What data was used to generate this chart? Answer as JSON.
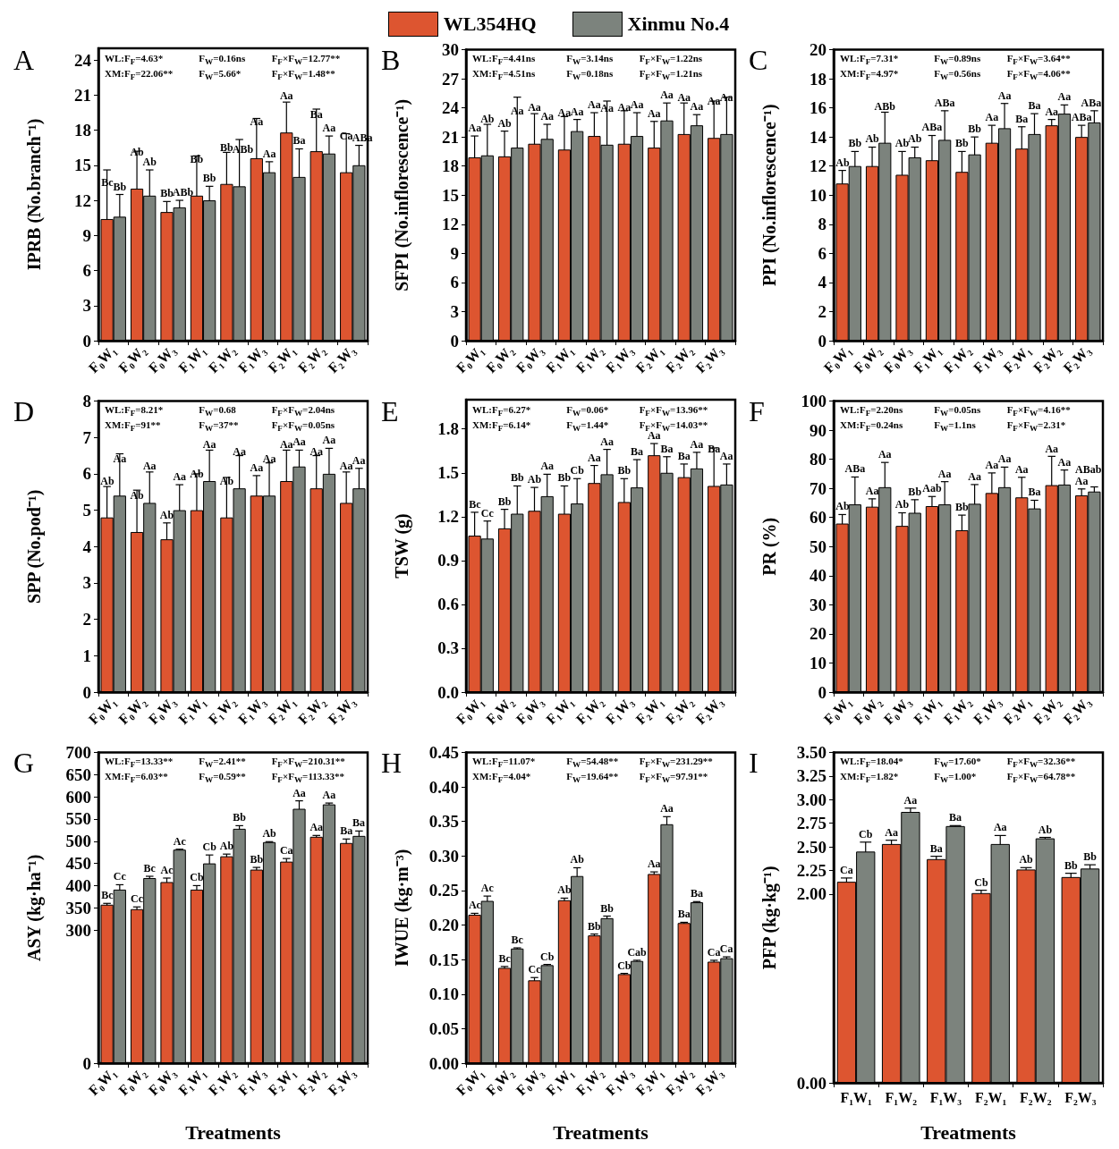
{
  "chart_data": [
    {
      "type": "bar",
      "title": "A",
      "ylabel": "IPRB (No.branch⁻¹)",
      "legend": "top",
      "grid": false,
      "ylim": [
        0,
        25
      ],
      "yticks": [
        0,
        3,
        6,
        9,
        12,
        15,
        18,
        21,
        24
      ],
      "categories": [
        "F₀W₁",
        "F₀W₂",
        "F₀W₃",
        "F₁W₁",
        "F₁W₂",
        "F₁W₃",
        "F₂W₁",
        "F₂W₂",
        "F₂W₃"
      ],
      "annotations": [
        "WL:F$_{F}$=4.63*",
        "F$_{W}$=0.16ns",
        "F$_{F}$×F$_{W}$=12.77**",
        "XM:F$_{F}$=22.06**",
        "F$_{W}$=5.66*",
        "F$_{F}$×F$_{W}$=1.48**"
      ],
      "series": [
        {
          "name": "WL354HQ",
          "color": "#dd5530",
          "values": [
            10.4,
            13.0,
            11.0,
            12.4,
            13.4,
            15.6,
            17.8,
            16.2,
            14.4
          ],
          "errors": [
            4.2,
            3.2,
            0.9,
            3.4,
            2.7,
            3.4,
            2.6,
            3.6,
            3.3
          ],
          "value_labels": [
            "Bc",
            "Ab",
            "Bb",
            "Bb",
            "Bb",
            "Aa",
            "Aa",
            "Ba",
            "Ca"
          ]
        },
        {
          "name": "Xinmu No.4",
          "color": "#7c837d",
          "values": [
            10.6,
            12.4,
            11.4,
            12.0,
            13.2,
            14.4,
            14.0,
            16.0,
            15.0
          ],
          "errors": [
            1.9,
            2.2,
            0.6,
            1.2,
            4.0,
            0.9,
            2.4,
            1.5,
            1.7
          ],
          "value_labels": [
            "Bb",
            "Ab",
            "ABb",
            "Bb",
            "ABb",
            "Aa",
            "Ba",
            "Aa",
            "ABa"
          ]
        }
      ]
    },
    {
      "type": "bar",
      "title": "B",
      "ylabel": "SFPI (No.inflorescence⁻¹)",
      "grid": false,
      "ylim": [
        0,
        30
      ],
      "yticks": [
        0,
        3,
        6,
        9,
        12,
        15,
        18,
        21,
        24,
        27,
        30
      ],
      "categories": [
        "F₀W₁",
        "F₀W₂",
        "F₀W₃",
        "F₁W₁",
        "F₁W₂",
        "F₁W₃",
        "F₂W₁",
        "F₂W₂",
        "F₂W₃"
      ],
      "annotations": [
        "WL:F$_{F}$=4.41ns",
        "F$_{W}$=3.14ns",
        "F$_{F}$×F$_{W}$=1.22ns",
        "XM:F$_{F}$=4.51ns",
        "F$_{W}$=0.18ns",
        "F$_{F}$×F$_{W}$=1.21ns"
      ],
      "series": [
        {
          "color": "#dd5530",
          "values": [
            18.9,
            19.0,
            20.3,
            19.7,
            21.1,
            20.3,
            19.9,
            21.3,
            20.9
          ],
          "errors": [
            2.2,
            2.6,
            3.1,
            3.4,
            2.4,
            3.4,
            2.7,
            3.2,
            3.8
          ],
          "value_labels": [
            "Aa",
            "Ab",
            "Aa",
            "Aa",
            "Aa",
            "Aa",
            "Aa",
            "Aa",
            "Aa"
          ]
        },
        {
          "color": "#7c837d",
          "values": [
            19.1,
            19.9,
            20.8,
            21.6,
            20.2,
            21.1,
            22.7,
            22.2,
            21.3
          ],
          "errors": [
            3.2,
            5.2,
            1.5,
            1.2,
            4.5,
            2.4,
            1.8,
            1.1,
            3.8
          ],
          "value_labels": [
            "Ab",
            "Aa",
            "Aa",
            "Aa",
            "Aa",
            "Aa",
            "Aa",
            "Aa",
            "Aa"
          ]
        }
      ]
    },
    {
      "type": "bar",
      "title": "C",
      "ylabel": "PPI (No.inflorescence⁻¹)",
      "grid": false,
      "ylim": [
        0,
        20
      ],
      "yticks": [
        0,
        2,
        4,
        6,
        8,
        10,
        12,
        14,
        16,
        18,
        20
      ],
      "categories": [
        "F₀W₁",
        "F₀W₂",
        "F₀W₃",
        "F₁W₁",
        "F₁W₂",
        "F₁W₃",
        "F₂W₁",
        "F₂W₂",
        "F₂W₃"
      ],
      "annotations": [
        "WL:F$_{F}$=7.31*",
        "F$_{W}$=0.89ns",
        "F$_{F}$×F$_{W}$=3.64**",
        "XM:F$_{F}$=4.97*",
        "F$_{W}$=0.56ns",
        "F$_{F}$×F$_{W}$=4.06**"
      ],
      "series": [
        {
          "color": "#dd5530",
          "values": [
            10.8,
            12.0,
            11.4,
            12.4,
            11.6,
            13.6,
            13.2,
            14.8,
            14.0
          ],
          "errors": [
            0.9,
            1.3,
            1.6,
            1.7,
            1.4,
            1.2,
            1.5,
            0.4,
            0.8
          ],
          "value_labels": [
            "Ab",
            "Ab",
            "Ab",
            "ABa",
            "Bb",
            "Aa",
            "Ba",
            "Aa",
            "ABa"
          ]
        },
        {
          "color": "#7c837d",
          "values": [
            12.0,
            13.6,
            12.6,
            13.8,
            12.8,
            14.6,
            14.2,
            15.6,
            15.0
          ],
          "errors": [
            1.0,
            2.1,
            0.7,
            2.0,
            1.2,
            1.7,
            1.4,
            0.6,
            0.8
          ],
          "value_labels": [
            "Bb",
            "ABb",
            "Ab",
            "ABa",
            "Bb",
            "Aa",
            "Ba",
            "Aa",
            "ABa"
          ]
        }
      ]
    },
    {
      "type": "bar",
      "title": "D",
      "ylabel": "SPP (No.pod⁻¹)",
      "grid": false,
      "ylim": [
        0,
        8
      ],
      "yticks": [
        0,
        1,
        2,
        3,
        4,
        5,
        6,
        7,
        8
      ],
      "categories": [
        "F₀W₁",
        "F₀W₂",
        "F₀W₃",
        "F₁W₁",
        "F₁W₂",
        "F₁W₃",
        "F₂W₁",
        "F₂W₂",
        "F₂W₃"
      ],
      "annotations": [
        "WL:F$_{F}$=8.21*",
        "F$_{W}$=0.68",
        "F$_{F}$×F$_{W}$=2.04ns",
        "XM:F$_{F}$=91**",
        "F$_{W}$=37**",
        "F$_{F}$×F$_{W}$=0.05ns"
      ],
      "series": [
        {
          "color": "#dd5530",
          "values": [
            4.8,
            4.4,
            4.2,
            5.0,
            4.8,
            5.4,
            5.8,
            5.6,
            5.2
          ],
          "errors": [
            0.85,
            1.15,
            0.45,
            1.0,
            1.1,
            0.55,
            0.85,
            0.9,
            0.85
          ],
          "value_labels": [
            "Ab",
            "Ab",
            "Ab",
            "Ab",
            "Ab",
            "Aa",
            "Aa",
            "Aa",
            "Aa"
          ]
        },
        {
          "color": "#7c837d",
          "values": [
            5.4,
            5.2,
            5.0,
            5.8,
            5.6,
            5.4,
            6.2,
            6.0,
            5.6
          ],
          "errors": [
            1.15,
            0.85,
            0.7,
            0.85,
            0.9,
            0.9,
            0.45,
            0.7,
            0.55
          ],
          "value_labels": [
            "Aa",
            "Aa",
            "Aa",
            "Aa",
            "Aa",
            "Aa",
            "Aa",
            "Aa",
            "Aa"
          ]
        }
      ]
    },
    {
      "type": "bar",
      "title": "E",
      "ylabel": "TSW (g)",
      "grid": false,
      "ylim": [
        0,
        2.0
      ],
      "yticks": [
        {
          "value": 0,
          "label": "0.0"
        },
        0.3,
        0.6,
        0.9,
        1.2,
        1.5,
        1.8
      ],
      "categories": [
        "F₀W₁",
        "F₀W₂",
        "F₀W₃",
        "F₁W₁",
        "F₁W₂",
        "F₁W₃",
        "F₂W₁",
        "F₂W₂",
        "F₂W₃"
      ],
      "annotations": [
        "WL:F$_{F}$=6.27*",
        "F$_{W}$=0.06*",
        "F$_{F}$×F$_{W}$=13.96**",
        "XM:F$_{F}$=6.14*",
        "F$_{W}$=1.44*",
        "F$_{F}$×F$_{W}$=14.03**"
      ],
      "series": [
        {
          "color": "#dd5530",
          "values": [
            1.07,
            1.12,
            1.24,
            1.22,
            1.43,
            1.3,
            1.62,
            1.47,
            1.41
          ],
          "errors": [
            0.16,
            0.13,
            0.16,
            0.19,
            0.12,
            0.16,
            0.08,
            0.09,
            0.26
          ],
          "value_labels": [
            "Bc",
            "Bb",
            "Ab",
            "Bb",
            "Aa",
            "Bb",
            "Aa",
            "Ba",
            "Ba"
          ]
        },
        {
          "color": "#7c837d",
          "values": [
            1.05,
            1.22,
            1.34,
            1.29,
            1.49,
            1.4,
            1.5,
            1.53,
            1.42
          ],
          "errors": [
            0.12,
            0.19,
            0.15,
            0.17,
            0.17,
            0.19,
            0.11,
            0.11,
            0.14
          ],
          "value_labels": [
            "Cc",
            "Bb",
            "Aa",
            "Cb",
            "Aa",
            "Ba",
            "Ba",
            "Aa",
            "Aa"
          ]
        }
      ]
    },
    {
      "type": "bar",
      "title": "F",
      "ylabel": "PR (%)",
      "grid": false,
      "ylim": [
        0,
        100
      ],
      "yticks": [
        0,
        10,
        20,
        30,
        40,
        50,
        60,
        70,
        80,
        90,
        100
      ],
      "categories": [
        "F₀W₁",
        "F₀W₂",
        "F₀W₃",
        "F₁W₁",
        "F₁W₂",
        "F₁W₃",
        "F₂W₁",
        "F₂W₂",
        "F₂W₃"
      ],
      "annotations": [
        "WL:F$_{F}$=2.20ns",
        "F$_{W}$=0.05ns",
        "F$_{F}$×F$_{W}$=4.16**",
        "XM:F$_{F}$=0.24ns",
        "F$_{W}$=1.1ns",
        "F$_{F}$×F$_{W}$=2.31*"
      ],
      "series": [
        {
          "color": "#dd5530",
          "values": [
            57.9,
            63.7,
            57.1,
            63.9,
            55.6,
            68.4,
            66.9,
            71.1,
            67.6
          ],
          "errors": [
            3.1,
            2.7,
            4.5,
            3.3,
            5.2,
            6.9,
            6.9,
            9.9,
            2.2
          ],
          "value_labels": [
            "Ab",
            "Aa",
            "Ab",
            "Aab",
            "Bb",
            "Aa",
            "Aa",
            "Aa",
            "Aa"
          ]
        },
        {
          "color": "#7c837d",
          "values": [
            64.5,
            70.4,
            61.6,
            64.5,
            64.7,
            70.4,
            63.1,
            71.3,
            68.9
          ],
          "errors": [
            9.4,
            8.5,
            4.5,
            7.8,
            6.6,
            6.9,
            2.8,
            5.0,
            1.6
          ],
          "value_labels": [
            "ABa",
            "Aa",
            "Bb",
            "Aa",
            "Aa",
            "Aa",
            "Ba",
            "Aa",
            "ABab"
          ]
        }
      ]
    },
    {
      "type": "bar",
      "title": "G",
      "ylabel": "ASY (kg·ha⁻¹)",
      "xlabel": "Treatments",
      "grid": false,
      "ylim": [
        0,
        700
      ],
      "yticks": [
        0,
        300,
        350,
        400,
        450,
        500,
        550,
        600,
        650,
        700
      ],
      "categories": [
        "F₀W₁",
        "F₀W₂",
        "F₀W₃",
        "F₁W₁",
        "F₁W₂",
        "F₁W₃",
        "F₂W₁",
        "F₂W₂",
        "F₂W₃"
      ],
      "annotations": [
        "WL:F$_{F}$=13.33**",
        "F$_{W}$=2.41**",
        "F$_{F}$×F$_{W}$=210.31**",
        "XM:F$_{F}$=6.03**",
        "F$_{W}$=0.59**",
        "F$_{F}$×F$_{W}$=113.33**"
      ],
      "series": [
        {
          "color": "#dd5530",
          "values": [
            357,
            347,
            408,
            391,
            466,
            436,
            454,
            510,
            496
          ],
          "errors": [
            3,
            5,
            9,
            9,
            5,
            5,
            7,
            3,
            9
          ],
          "value_labels": [
            "Bc",
            "Cc",
            "Ac",
            "Cb",
            "Ab",
            "Bb",
            "Ca",
            "Aa",
            "Ba"
          ]
        },
        {
          "color": "#7c837d",
          "values": [
            391,
            417,
            481,
            450,
            528,
            498,
            573,
            583,
            512
          ],
          "errors": [
            11,
            4,
            1,
            19,
            7,
            1,
            18,
            3,
            11
          ],
          "value_labels": [
            "Cc",
            "Bc",
            "Ac",
            "Cb",
            "Bb",
            "Ab",
            "Aa",
            "Aa",
            "Ba"
          ]
        }
      ]
    },
    {
      "type": "bar",
      "title": "H",
      "ylabel": "IWUE (kg·m⁻³)",
      "xlabel": "Treatments",
      "grid": false,
      "ylim": [
        0,
        0.45
      ],
      "yticks": [
        {
          "value": 0,
          "label": "0.00"
        },
        0.05,
        {
          "value": 0.1,
          "label": "0.10"
        },
        0.15,
        {
          "value": 0.2,
          "label": "0.20"
        },
        0.25,
        {
          "value": 0.3,
          "label": "0.30"
        },
        0.35,
        {
          "value": 0.4,
          "label": "0.40"
        },
        0.45
      ],
      "categories": [
        "F₀W₁",
        "F₀W₂",
        "F₀W₃",
        "F₁W₁",
        "F₁W₂",
        "F₁W₃",
        "F₂W₁",
        "F₂W₂",
        "F₂W₃"
      ],
      "annotations": [
        "WL:F$_{F}$=11.07*",
        "F$_{W}$=54.48**",
        "F$_{F}$×F$_{W}$=231.29**",
        "XM:F$_{F}$=4.04*",
        "F$_{W}$=19.64**",
        "F$_{F}$×F$_{W}$=97.91**"
      ],
      "series": [
        {
          "color": "#dd5530",
          "values": [
            0.215,
            0.138,
            0.12,
            0.236,
            0.185,
            0.129,
            0.274,
            0.203,
            0.147
          ],
          "errors": [
            0.002,
            0.002,
            0.004,
            0.003,
            0.002,
            0.001,
            0.003,
            0.001,
            0.002
          ],
          "value_labels": [
            "Ac",
            "Bc",
            "Cc",
            "Ab",
            "Bb",
            "Cb",
            "Aa",
            "Ba",
            "Ca"
          ]
        },
        {
          "color": "#7c837d",
          "values": [
            0.235,
            0.166,
            0.142,
            0.271,
            0.21,
            0.148,
            0.346,
            0.233,
            0.152
          ],
          "errors": [
            0.007,
            0.001,
            0.001,
            0.012,
            0.003,
            0.001,
            0.011,
            0.001,
            0.002
          ],
          "value_labels": [
            "Ac",
            "Bc",
            "Cb",
            "Ab",
            "Bb",
            "Cab",
            "Aa",
            "Ba",
            "Ca"
          ]
        }
      ]
    },
    {
      "type": "bar",
      "title": "I",
      "ylabel": "PFP (kg·kg⁻¹)",
      "xlabel": "Treatments",
      "grid": false,
      "ylim": [
        0,
        3.5
      ],
      "yticks": [
        {
          "value": 0,
          "label": "0.00"
        },
        {
          "value": 2,
          "label": "2.00"
        },
        2.25,
        {
          "value": 2.5,
          "label": "2.50"
        },
        2.75,
        {
          "value": 3,
          "label": "3.00"
        },
        3.25,
        {
          "value": 3.5,
          "label": "3.50"
        }
      ],
      "categories": [
        "F₁W₁",
        "F₁W₂",
        "F₁W₃",
        "F₂W₁",
        "F₂W₂",
        "F₂W₃"
      ],
      "annotations": [
        "WL:F$_{F}$=18.04*",
        "F$_{W}$=17.60*",
        "F$_{F}$×F$_{W}$=32.36**",
        "XM:F$_{F}$=1.82*",
        "F$_{W}$=1.00*",
        "F$_{F}$×F$_{W}$=64.78**"
      ],
      "series": [
        {
          "color": "#dd5530",
          "values": [
            2.13,
            2.53,
            2.37,
            2.01,
            2.26,
            2.18
          ],
          "errors": [
            0.04,
            0.04,
            0.03,
            0.03,
            0.02,
            0.04
          ],
          "value_labels": [
            "Ca",
            "Aa",
            "Ba",
            "Cb",
            "Ab",
            "Bb"
          ]
        },
        {
          "color": "#7c837d",
          "values": [
            2.45,
            2.87,
            2.72,
            2.53,
            2.59,
            2.27
          ],
          "errors": [
            0.1,
            0.04,
            0.005,
            0.09,
            0.01,
            0.04
          ],
          "value_labels": [
            "Cb",
            "Aa",
            "Ba",
            "Aa",
            "Ab",
            "Bb"
          ]
        }
      ]
    }
  ]
}
